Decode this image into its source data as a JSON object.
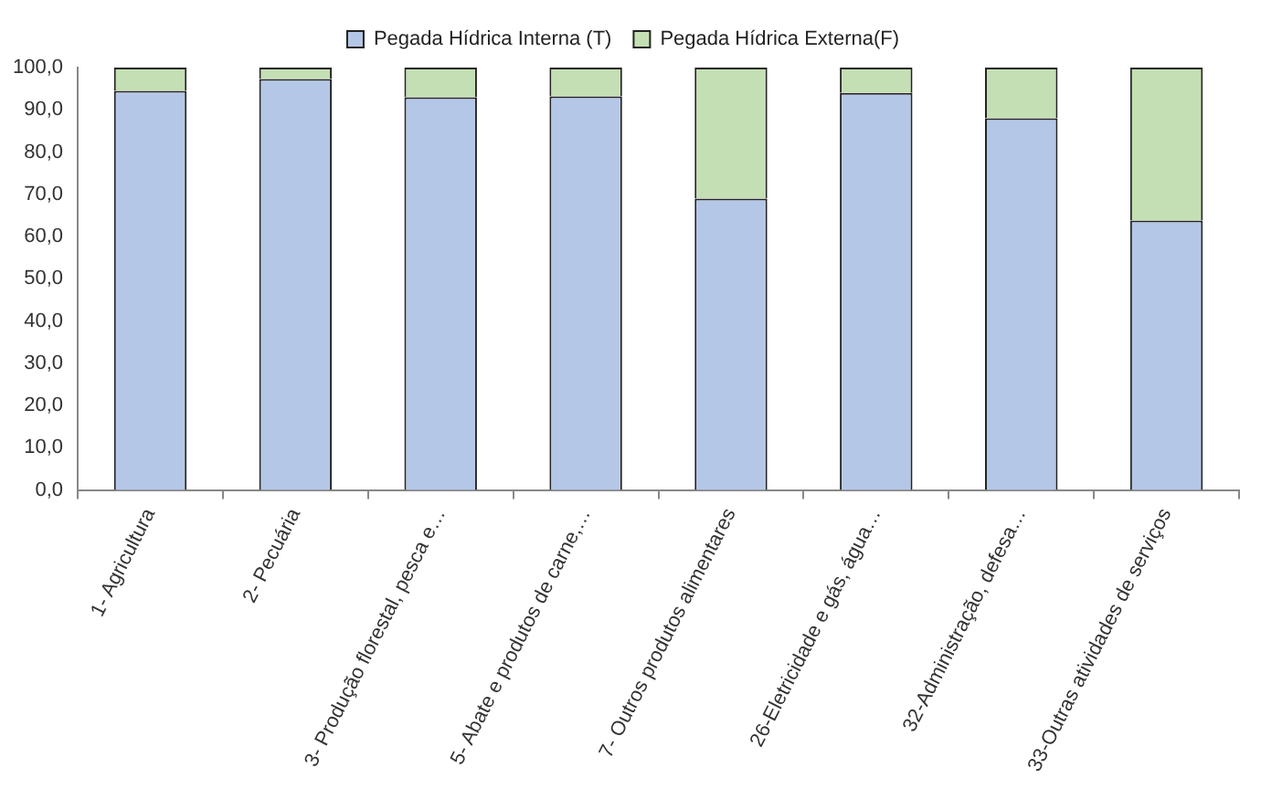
{
  "chart_data": {
    "type": "bar",
    "stacked": true,
    "legend": "top",
    "grid": false,
    "categories": [
      "1- Agricultura",
      "2- Pecuária",
      "3- Produção florestal, pesca e…",
      "5- Abate e produtos de carne,…",
      "7- Outros produtos alimentares",
      "26-Eletricidade e gás, água…",
      "32-Administração, defesa…",
      "33-Outras atividades de serviços"
    ],
    "series": [
      {
        "name": "Pegada Hídrica Interna (T)",
        "color": "#b4c7e7",
        "values": [
          94.5,
          97.3,
          93.0,
          93.2,
          69.0,
          94.0,
          88.0,
          63.8
        ]
      },
      {
        "name": "Pegada Hídrica Externa(F)",
        "color": "#c4dfb3",
        "values": [
          5.5,
          2.7,
          7.0,
          6.8,
          31.0,
          6.0,
          12.0,
          36.2
        ]
      }
    ],
    "ylim": [
      0,
      100
    ],
    "yticks": [
      {
        "value": 0,
        "label": "0,0"
      },
      {
        "value": 10,
        "label": "10,0"
      },
      {
        "value": 20,
        "label": "20,0"
      },
      {
        "value": 30,
        "label": "30,0"
      },
      {
        "value": 40,
        "label": "40,0"
      },
      {
        "value": 50,
        "label": "50,0"
      },
      {
        "value": 60,
        "label": "60,0"
      },
      {
        "value": 70,
        "label": "70,0"
      },
      {
        "value": 80,
        "label": "80,0"
      },
      {
        "value": 90,
        "label": "90,0"
      },
      {
        "value": 100,
        "label": "100,0"
      }
    ]
  }
}
